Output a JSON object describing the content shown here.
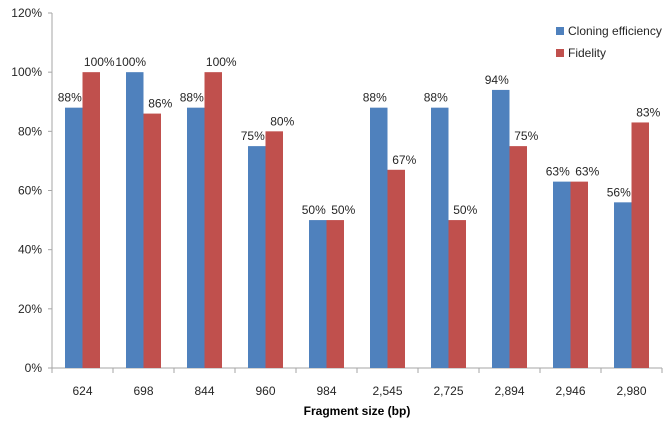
{
  "chart_data": {
    "type": "bar",
    "title": "",
    "xlabel": "Fragment size (bp)",
    "ylabel": "",
    "ylim": [
      0,
      120
    ],
    "yticks": [
      "0%",
      "20%",
      "40%",
      "60%",
      "80%",
      "100%",
      "120%"
    ],
    "categories": [
      "624",
      "698",
      "844",
      "960",
      "984",
      "2,545",
      "2,725",
      "2,894",
      "2,946",
      "2,980"
    ],
    "series": [
      {
        "name": "Cloning efficiency",
        "color": "#4F81BD",
        "values": [
          88,
          100,
          88,
          75,
          50,
          88,
          88,
          94,
          63,
          56
        ],
        "labels": [
          "88%",
          "100%",
          "88%",
          "75%",
          "50%",
          "88%",
          "88%",
          "94%",
          "63%",
          "56%"
        ]
      },
      {
        "name": "Fidelity",
        "color": "#C0504D",
        "values": [
          100,
          86,
          100,
          80,
          50,
          67,
          50,
          75,
          63,
          83
        ],
        "labels": [
          "100%",
          "86%",
          "100%",
          "80%",
          "50%",
          "67%",
          "50%",
          "75%",
          "63%",
          "83%"
        ]
      }
    ],
    "grid": false,
    "legend_position": "top-right"
  },
  "legend": {
    "items": [
      {
        "label": "Cloning efficiency",
        "color": "#4F81BD"
      },
      {
        "label": "Fidelity",
        "color": "#C0504D"
      }
    ]
  }
}
